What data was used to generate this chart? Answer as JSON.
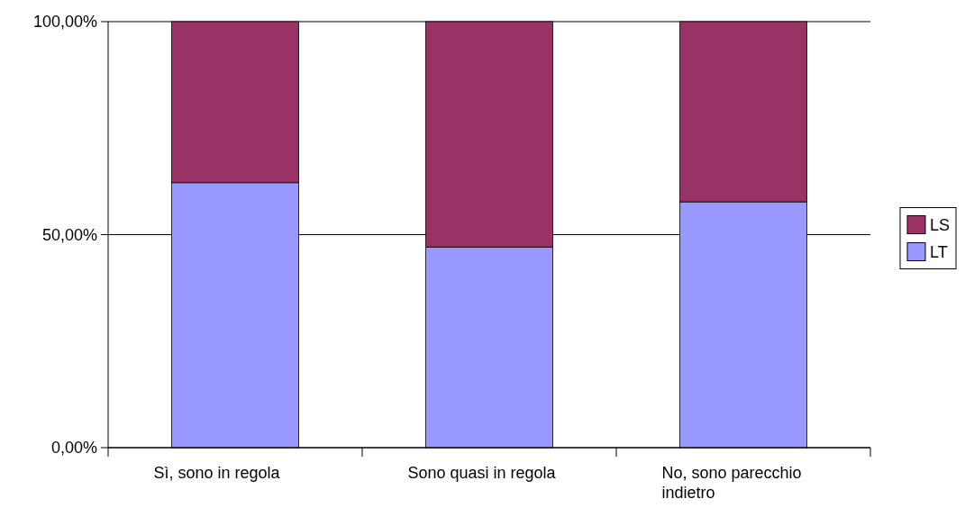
{
  "chart_data": {
    "type": "bar",
    "stacked": true,
    "categories": [
      "Sì, sono in regola",
      "Sono quasi in regola",
      "No, sono parecchio indietro"
    ],
    "series": [
      {
        "name": "LT",
        "color": "#9999ff",
        "values": [
          62.2,
          47.1,
          57.7
        ]
      },
      {
        "name": "LS",
        "color": "#993366",
        "values": [
          37.8,
          52.9,
          42.3
        ]
      }
    ],
    "ylim": [
      0,
      100
    ],
    "yticks": [
      {
        "value": 0,
        "label": "0,00%"
      },
      {
        "value": 50,
        "label": "50,00%"
      },
      {
        "value": 100,
        "label": "100,00%"
      }
    ],
    "grid": "y",
    "legend": "right"
  }
}
